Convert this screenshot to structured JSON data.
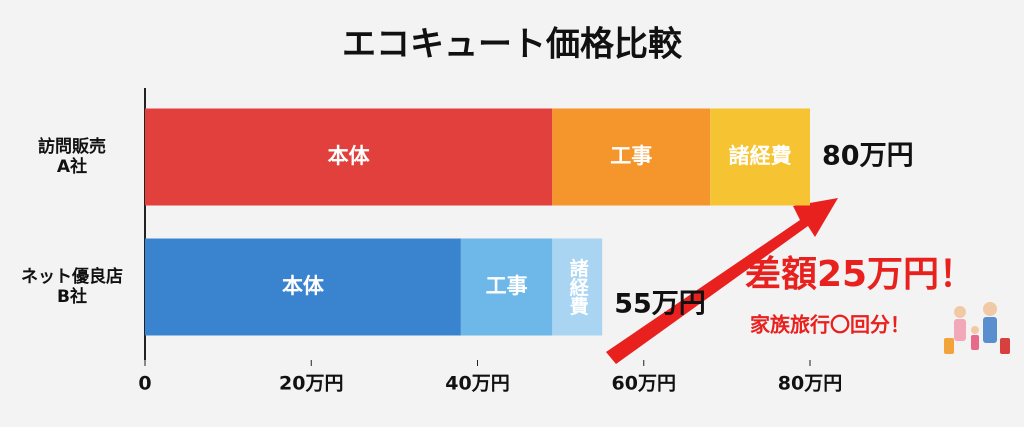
{
  "chart_data": {
    "type": "stacked-barh",
    "title": "エコキュート価格比較",
    "categories": [
      "訪問販売\nA社",
      "ネット優良店\nB社"
    ],
    "series": [
      {
        "name": "本体",
        "colors": [
          "#e2403c",
          "#3a84cf"
        ],
        "values": [
          49,
          38
        ]
      },
      {
        "name": "工事",
        "colors": [
          "#f5962c",
          "#6db8e8"
        ],
        "values": [
          19,
          11
        ]
      },
      {
        "name": "諸経費",
        "colors": [
          "#f6c433",
          "#a9d5f2"
        ],
        "values": [
          12,
          6
        ]
      }
    ],
    "totals": {
      "values": [
        80,
        55
      ],
      "value_labels": [
        "80万円",
        "55万円"
      ]
    },
    "xlim": [
      0,
      80
    ],
    "xticks": [
      0,
      {
        "value": 20,
        "label": "20万円"
      },
      {
        "value": 40,
        "label": "40万円"
      },
      {
        "value": 60,
        "label": "60万円"
      },
      {
        "value": 80,
        "label": "80万円"
      }
    ],
    "annotations": [
      "差額25万円！",
      "家族旅行〇回分！"
    ]
  }
}
